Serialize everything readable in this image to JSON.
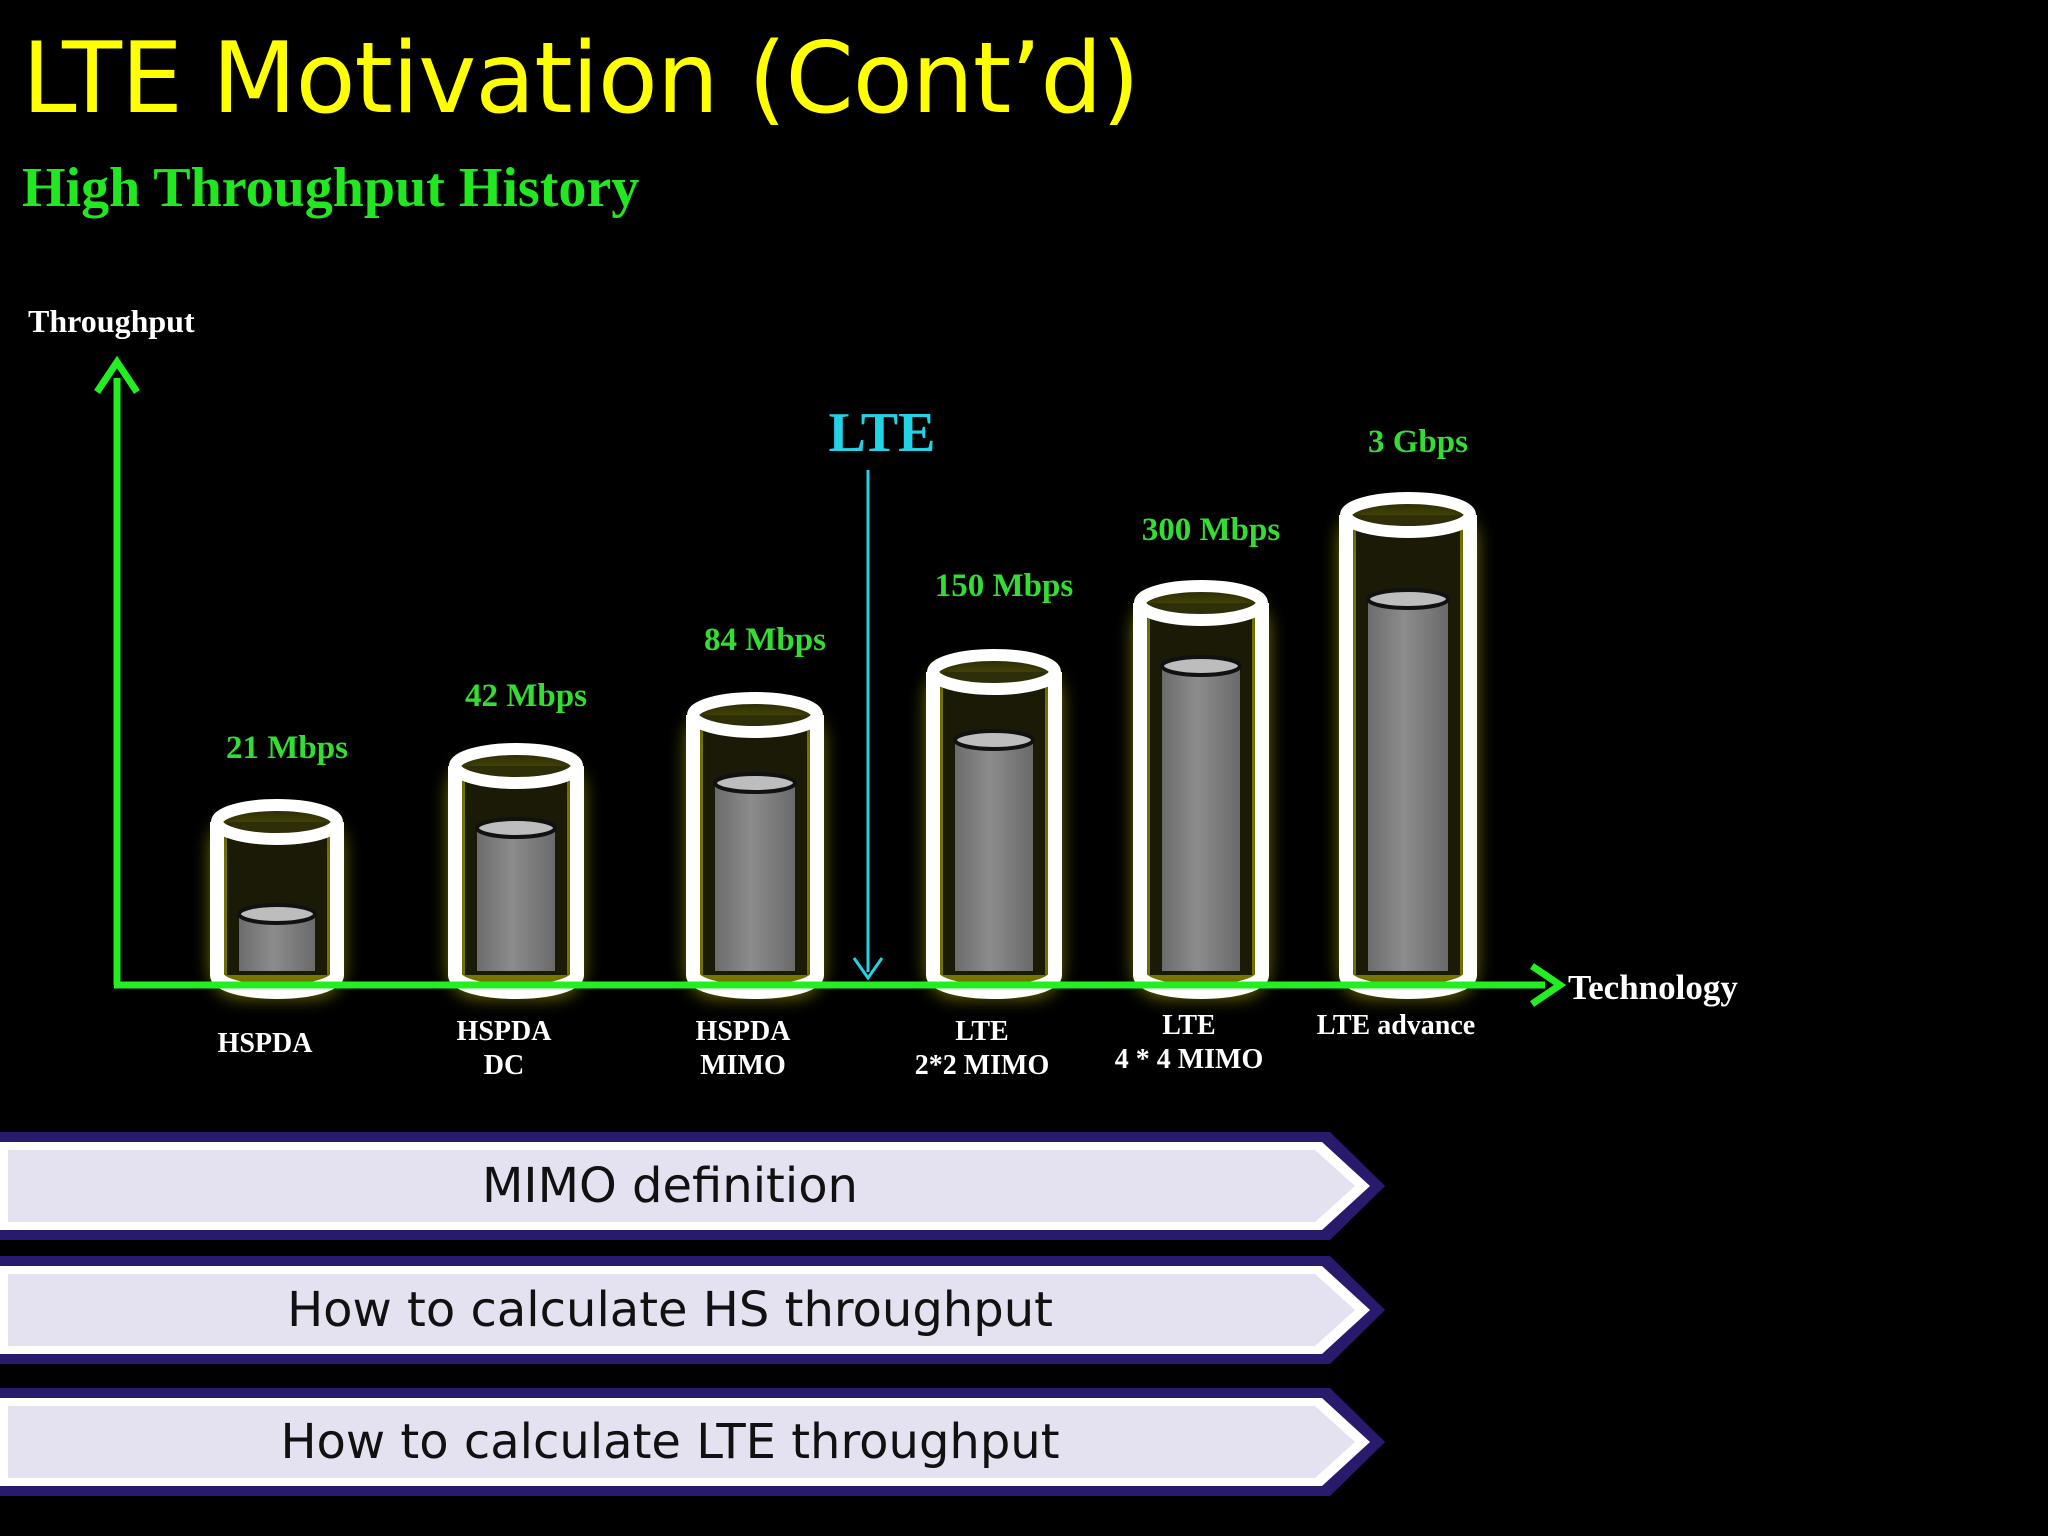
{
  "title": "LTE Motivation (Cont’d)",
  "subtitle": "High Throughput History",
  "colors": {
    "title": "#ffff00",
    "subtitle": "#22e822",
    "axis": "#22ee22",
    "value_label": "#33dd33",
    "category_label": "#ffffff",
    "lte_marker": "#22d3e6",
    "cylinder_outline": "#ffffff",
    "cylinder_glow": "#d9d900",
    "fill": "#7f7f7f",
    "arrow_bar_fill": "#e4e1f0",
    "arrow_bar_border": "#2a1a6e"
  },
  "chart_data": {
    "type": "bar",
    "style": "cylinders",
    "ylabel": "Throughput",
    "xlabel": "Technology",
    "categories": [
      [
        "HSPDA"
      ],
      [
        "HSPDA",
        "DC"
      ],
      [
        "HSPDA",
        "MIMO"
      ],
      [
        "LTE",
        "2*2  MIMO"
      ],
      [
        "LTE",
        "4 * 4  MIMO"
      ],
      [
        "LTE  advance"
      ]
    ],
    "value_labels": [
      "21 Mbps",
      "42 Mbps",
      "84  Mbps",
      "150  Mbps",
      "300  Mbps",
      "3 Gbps"
    ],
    "values_mbps": [
      21,
      42,
      84,
      150,
      300,
      3000
    ],
    "marker": {
      "label": "LTE",
      "position": "between HSPDA MIMO and LTE 2*2 MIMO"
    }
  },
  "buttons": [
    {
      "label": "MIMO definition"
    },
    {
      "label": "How to calculate HS throughput"
    },
    {
      "label": "How to calculate LTE throughput"
    }
  ]
}
